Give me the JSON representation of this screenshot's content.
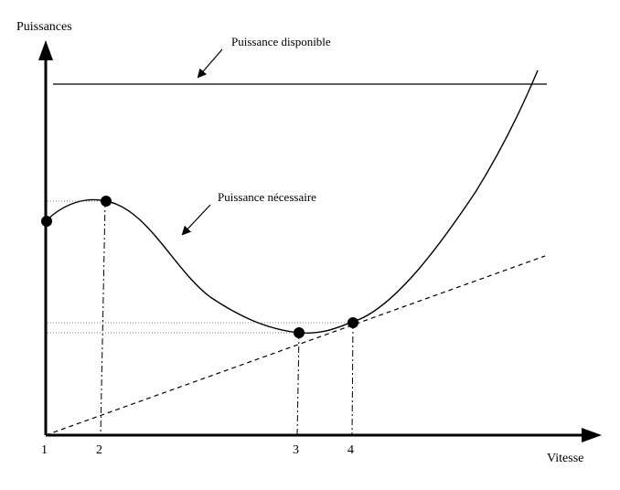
{
  "axes": {
    "y_label": "Puissances",
    "x_label": "Vitesse"
  },
  "annotations": {
    "available_power": "Puissance disponible",
    "required_power": "Puissance nécessaire"
  },
  "points": [
    {
      "label": "1"
    },
    {
      "label": "2"
    },
    {
      "label": "3"
    },
    {
      "label": "4"
    }
  ],
  "colors": {
    "ink": "#000000",
    "guide": "#555555"
  }
}
